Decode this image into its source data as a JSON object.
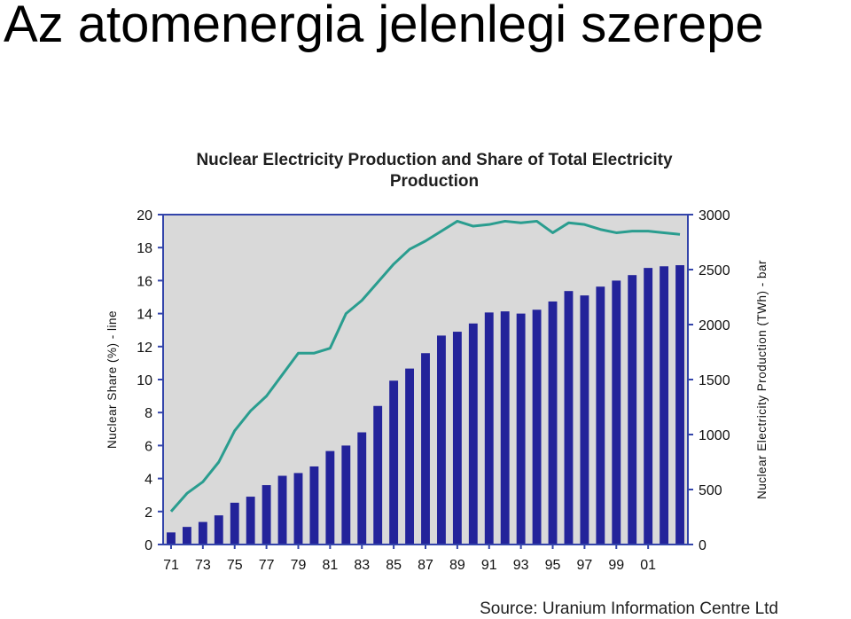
{
  "slide": {
    "title": "Az atomenergia jelenlegi szerepe"
  },
  "source": "Source: Uranium Information Centre Ltd",
  "colors": {
    "bar": "#23239a",
    "line": "#2a9d8f",
    "plot_bg": "#d9d9d9",
    "axis": "#3344aa"
  },
  "chart_data": {
    "type": "bar",
    "title_lines": [
      "Nuclear Electricity Production and Share of Total Electricity",
      "Production"
    ],
    "ylabel_left": "Nuclear Share (%) - line",
    "ylabel_right": "Nuclear Electricity Production (TWh) - bar",
    "ylim_left": [
      0,
      20
    ],
    "ylim_right": [
      0,
      3000
    ],
    "yticks_left": [
      "0",
      "2",
      "4",
      "6",
      "8",
      "10",
      "12",
      "14",
      "16",
      "18",
      "20"
    ],
    "yticks_right": [
      "0",
      "500",
      "1000",
      "1500",
      "2000",
      "2500",
      "3000"
    ],
    "x_tick_labels": [
      "71",
      "73",
      "75",
      "77",
      "79",
      "81",
      "83",
      "85",
      "87",
      "89",
      "91",
      "93",
      "95",
      "97",
      "99",
      "01"
    ],
    "grid": false,
    "categories": [
      "1971",
      "1972",
      "1973",
      "1974",
      "1975",
      "1976",
      "1977",
      "1978",
      "1979",
      "1980",
      "1981",
      "1982",
      "1983",
      "1984",
      "1985",
      "1986",
      "1987",
      "1988",
      "1989",
      "1990",
      "1991",
      "1992",
      "1993",
      "1994",
      "1995",
      "1996",
      "1997",
      "1998",
      "1999",
      "2000",
      "2001",
      "2002",
      "2003"
    ],
    "series": [
      {
        "type": "bar",
        "axis": "right",
        "values": [
          110,
          160,
          205,
          265,
          380,
          435,
          540,
          625,
          650,
          710,
          850,
          900,
          1020,
          1260,
          1490,
          1600,
          1740,
          1900,
          1935,
          2010,
          2110,
          2120,
          2100,
          2135,
          2210,
          2305,
          2265,
          2345,
          2400,
          2450,
          2515,
          2530,
          2540
        ]
      },
      {
        "type": "line",
        "axis": "left",
        "values": [
          2.0,
          3.1,
          3.8,
          5.0,
          6.9,
          8.1,
          9.0,
          10.3,
          11.6,
          11.6,
          11.9,
          14.0,
          14.8,
          15.9,
          17.0,
          17.9,
          18.4,
          19.0,
          19.6,
          19.3,
          19.4,
          19.6,
          19.5,
          19.6,
          18.9,
          19.5,
          19.4,
          19.1,
          18.9,
          19.0,
          19.0,
          18.9,
          18.8
        ]
      }
    ]
  }
}
